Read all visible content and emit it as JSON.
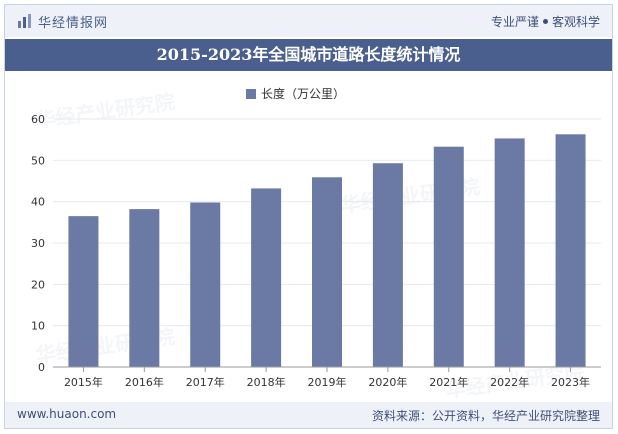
{
  "header": {
    "brand_name": "华经情报网",
    "tagline_left": "专业严谨",
    "tagline_right": "客观科学"
  },
  "title": "2015-2023年全国城市道路长度统计情况",
  "watermark": "华经产业研究院",
  "chart_data": {
    "type": "bar",
    "categories": [
      "2015年",
      "2016年",
      "2017年",
      "2018年",
      "2019年",
      "2020年",
      "2021年",
      "2022年",
      "2023年"
    ],
    "series": [
      {
        "name": "长度（万公里）",
        "values": [
          36.5,
          38.2,
          39.8,
          43.2,
          45.9,
          49.3,
          53.3,
          55.3,
          56.3
        ]
      }
    ],
    "ylim": [
      0,
      60
    ],
    "yticks": [
      0,
      10,
      20,
      30,
      40,
      50,
      60
    ],
    "legend": "top-center",
    "color": "#6a7aa4"
  },
  "footer": {
    "website": "www.huaon.com",
    "source": "资料来源：公开资料，华经产业研究院整理"
  }
}
